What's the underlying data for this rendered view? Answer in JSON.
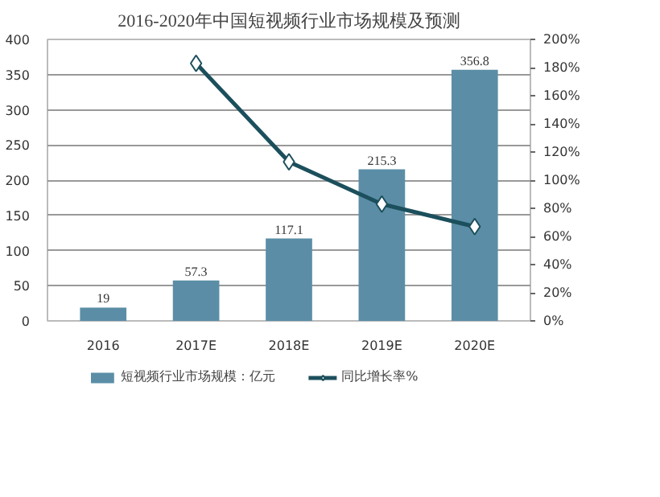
{
  "chart_data": {
    "type": "bar",
    "title": "2016-2020年中国短视频行业市场规模及预测",
    "categories": [
      "2016",
      "2017E",
      "2018E",
      "2019E",
      "2020E"
    ],
    "series": [
      {
        "name": "短视频行业市场规模：亿元",
        "color": "#5b8ea6",
        "values": [
          19,
          57.3,
          117.1,
          215.3,
          356.8
        ],
        "value_labels": [
          "19",
          "57.3",
          "117.1",
          "215.3",
          "356.8"
        ]
      },
      {
        "name": "同比增长率%",
        "type": "line",
        "axis": "y2",
        "color": "#1c4f5c",
        "marker": "diamond",
        "values": [
          null,
          183,
          113,
          83,
          67
        ]
      }
    ],
    "ylim": [
      0,
      400
    ],
    "yticks": [
      0,
      50,
      100,
      150,
      200,
      250,
      300,
      350,
      400
    ],
    "y2lim": [
      0,
      200
    ],
    "y2ticks": [
      {
        "value": 0,
        "label": "0%"
      },
      {
        "value": 20,
        "label": "20%"
      },
      {
        "value": 40,
        "label": "40%"
      },
      {
        "value": 60,
        "label": "60%"
      },
      {
        "value": 80,
        "label": "80%"
      },
      {
        "value": 100,
        "label": "100%"
      },
      {
        "value": 120,
        "label": "120%"
      },
      {
        "value": 140,
        "label": "140%"
      },
      {
        "value": 160,
        "label": "160%"
      },
      {
        "value": 180,
        "label": "180%"
      },
      {
        "value": 200,
        "label": "200%"
      }
    ],
    "grid": "y",
    "legend": "bottom"
  }
}
